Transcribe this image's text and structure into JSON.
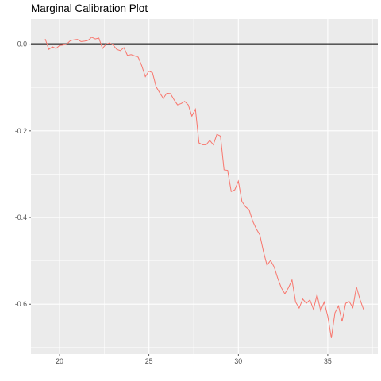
{
  "chart_data": {
    "type": "line",
    "title": "Marginal Calibration Plot",
    "xlabel": "",
    "ylabel": "",
    "xlim": [
      18.4,
      37.8
    ],
    "ylim": [
      -0.715,
      0.058
    ],
    "x_ticks": [
      20,
      25,
      30,
      35
    ],
    "y_ticks": [
      0.0,
      -0.2,
      -0.4,
      -0.6
    ],
    "x_tick_labels": [
      "20",
      "25",
      "30",
      "35"
    ],
    "y_tick_labels": [
      "0.0",
      "-0.2",
      "-0.4",
      "-0.6"
    ],
    "reference_line": {
      "y": 0,
      "color": "#000000"
    },
    "grid": true,
    "background": "#ebebeb",
    "series": [
      {
        "color": "#f8766d",
        "x": [
          19.2,
          19.4,
          19.6,
          19.8,
          20.0,
          20.2,
          20.4,
          20.6,
          20.8,
          21.0,
          21.2,
          21.4,
          21.6,
          21.8,
          22.0,
          22.2,
          22.4,
          22.6,
          22.8,
          23.0,
          23.2,
          23.4,
          23.6,
          23.8,
          24.0,
          24.2,
          24.4,
          24.6,
          24.8,
          25.0,
          25.2,
          25.4,
          25.6,
          25.8,
          26.0,
          26.2,
          26.4,
          26.6,
          26.8,
          27.0,
          27.2,
          27.4,
          27.6,
          27.8,
          28.0,
          28.2,
          28.4,
          28.6,
          28.8,
          29.0,
          29.2,
          29.4,
          29.6,
          29.8,
          30.0,
          30.2,
          30.4,
          30.6,
          30.8,
          31.0,
          31.2,
          31.4,
          31.6,
          31.8,
          32.0,
          32.2,
          32.4,
          32.6,
          32.8,
          33.0,
          33.2,
          33.4,
          33.6,
          33.8,
          34.0,
          34.2,
          34.4,
          34.6,
          34.8,
          35.0,
          35.2,
          35.4,
          35.6,
          35.8,
          36.0,
          36.2,
          36.4,
          36.6,
          36.8,
          37.0
        ],
        "y": [
          0.012,
          -0.012,
          -0.006,
          -0.01,
          -0.003,
          -0.002,
          0.0,
          0.008,
          0.01,
          0.011,
          0.006,
          0.007,
          0.009,
          0.016,
          0.012,
          0.014,
          -0.01,
          0.0,
          0.003,
          -0.002,
          -0.012,
          -0.015,
          -0.008,
          -0.026,
          -0.024,
          -0.027,
          -0.03,
          -0.05,
          -0.075,
          -0.062,
          -0.066,
          -0.098,
          -0.112,
          -0.125,
          -0.113,
          -0.114,
          -0.128,
          -0.14,
          -0.137,
          -0.132,
          -0.14,
          -0.166,
          -0.15,
          -0.228,
          -0.232,
          -0.232,
          -0.222,
          -0.232,
          -0.208,
          -0.212,
          -0.29,
          -0.291,
          -0.34,
          -0.336,
          -0.316,
          -0.363,
          -0.375,
          -0.382,
          -0.408,
          -0.426,
          -0.44,
          -0.478,
          -0.51,
          -0.499,
          -0.514,
          -0.54,
          -0.562,
          -0.576,
          -0.562,
          -0.544,
          -0.595,
          -0.609,
          -0.588,
          -0.598,
          -0.59,
          -0.612,
          -0.578,
          -0.615,
          -0.595,
          -0.628,
          -0.678,
          -0.62,
          -0.604,
          -0.64,
          -0.598,
          -0.594,
          -0.608,
          -0.56,
          -0.589,
          -0.612
        ]
      }
    ]
  }
}
